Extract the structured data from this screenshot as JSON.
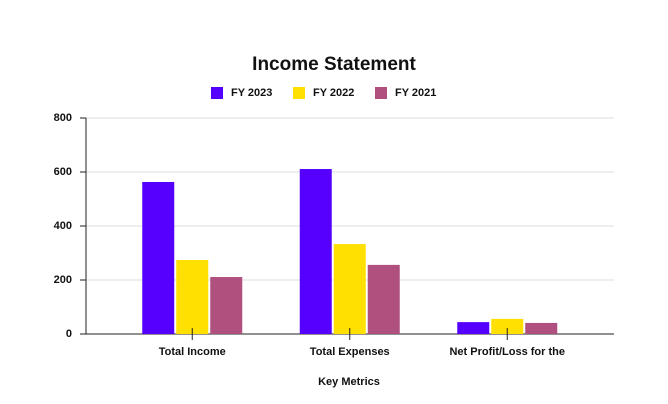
{
  "chart_data": {
    "type": "bar",
    "title": "Income Statement",
    "x_label": "Key Metrics",
    "categories": [
      "Total Income",
      "Total Expenses",
      "Net Profit/Loss for the"
    ],
    "series": [
      {
        "name": "FY 2023",
        "color": "#5500ff",
        "values": [
          563,
          611,
          44
        ]
      },
      {
        "name": "FY 2022",
        "color": "#ffe000",
        "values": [
          274,
          333,
          56
        ]
      },
      {
        "name": "FY 2021",
        "color": "#b0507e",
        "values": [
          211,
          256,
          41
        ]
      }
    ],
    "ylim": [
      0,
      800
    ],
    "yticks": [
      0,
      200,
      400,
      600,
      800
    ],
    "grid": true,
    "legend": "top"
  }
}
